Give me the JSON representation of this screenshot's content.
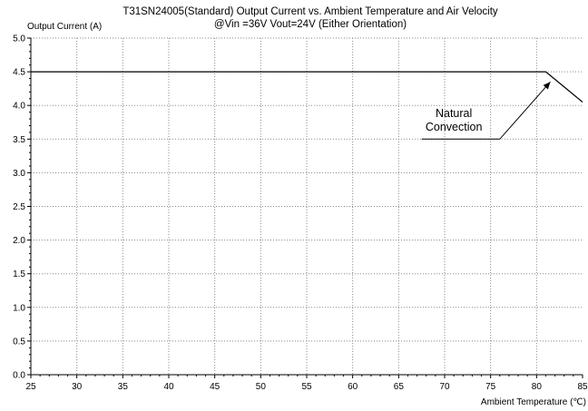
{
  "chart_data": {
    "type": "line",
    "title": "T31SN24005(Standard) Output Current vs. Ambient Temperature and Air Velocity",
    "subtitle": "@Vin =36V Vout=24V (Either Orientation)",
    "xlabel": "Ambient Temperature (℃)",
    "ylabel": "Output Current (A)",
    "xlim": [
      25,
      85
    ],
    "ylim": [
      0,
      5
    ],
    "x_ticks": [
      25,
      30,
      35,
      40,
      45,
      50,
      55,
      60,
      65,
      70,
      75,
      80,
      85
    ],
    "y_ticks": [
      "0.0",
      "0.5",
      "1.0",
      "1.5",
      "2.0",
      "2.5",
      "3.0",
      "3.5",
      "4.0",
      "4.5",
      "5.0"
    ],
    "grid": true,
    "legend": "none",
    "series": [
      {
        "x": [
          25,
          81,
          85
        ],
        "y": [
          4.5,
          4.5,
          4.05
        ]
      }
    ],
    "annotations": [
      {
        "text_lines": [
          "Natural",
          "Convection"
        ],
        "text_x": 71,
        "text_y": 3.75,
        "leader": [
          [
            67.5,
            3.5
          ],
          [
            76,
            3.5
          ],
          [
            81.5,
            4.35
          ]
        ]
      }
    ]
  }
}
